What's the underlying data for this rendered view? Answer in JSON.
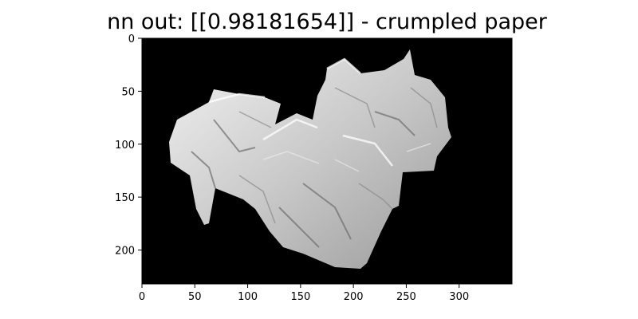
{
  "figure": {
    "title": "nn out: [[0.98181654]] - crumpled paper"
  },
  "chart_data": {
    "type": "image",
    "title": "nn out: [[0.98181654]] - crumpled paper",
    "xlabel": "",
    "ylabel": "",
    "xlim": [
      0,
      350
    ],
    "ylim": [
      232,
      0
    ],
    "xticks": [
      0,
      50,
      100,
      150,
      200,
      250,
      300
    ],
    "yticks": [
      0,
      50,
      100,
      150,
      200
    ],
    "grid": false,
    "legend": "none",
    "colormap": "gray",
    "background_color": "#000000",
    "object_color": "#d4d4d4"
  }
}
